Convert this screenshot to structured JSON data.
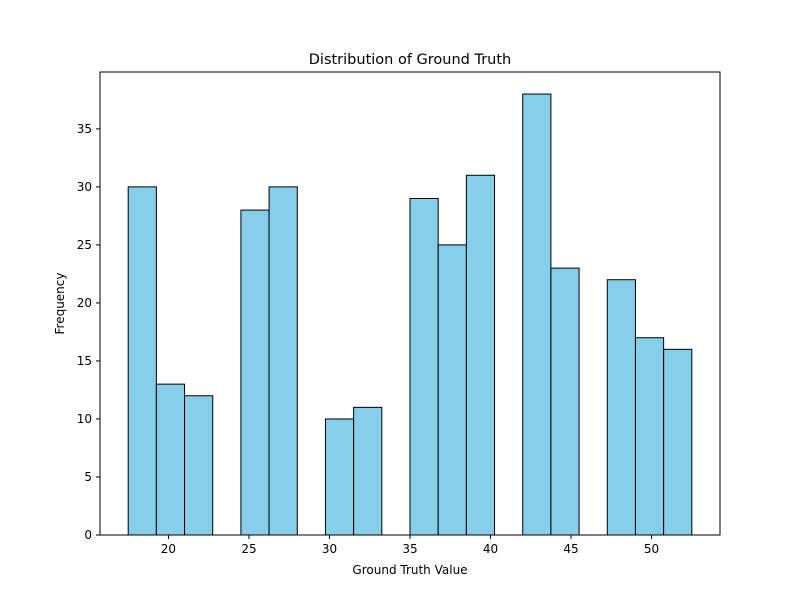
{
  "chart_data": {
    "type": "histogram",
    "title": "Distribution of Ground Truth",
    "xlabel": "Ground Truth Value",
    "ylabel": "Frequency",
    "xlim": [
      15.75,
      54.25
    ],
    "ylim": [
      0,
      39.9
    ],
    "xticks": [
      20,
      25,
      30,
      35,
      40,
      45,
      50
    ],
    "yticks": [
      0,
      5,
      10,
      15,
      20,
      25,
      30,
      35
    ],
    "bin_start": 17.5,
    "bin_width": 1.75,
    "values": [
      30,
      13,
      12,
      0,
      28,
      30,
      0,
      10,
      11,
      0,
      29,
      25,
      31,
      0,
      38,
      23,
      0,
      22,
      17,
      16
    ],
    "bar_color": "#87CEEB",
    "edge_color": "#000000",
    "grid": false
  }
}
